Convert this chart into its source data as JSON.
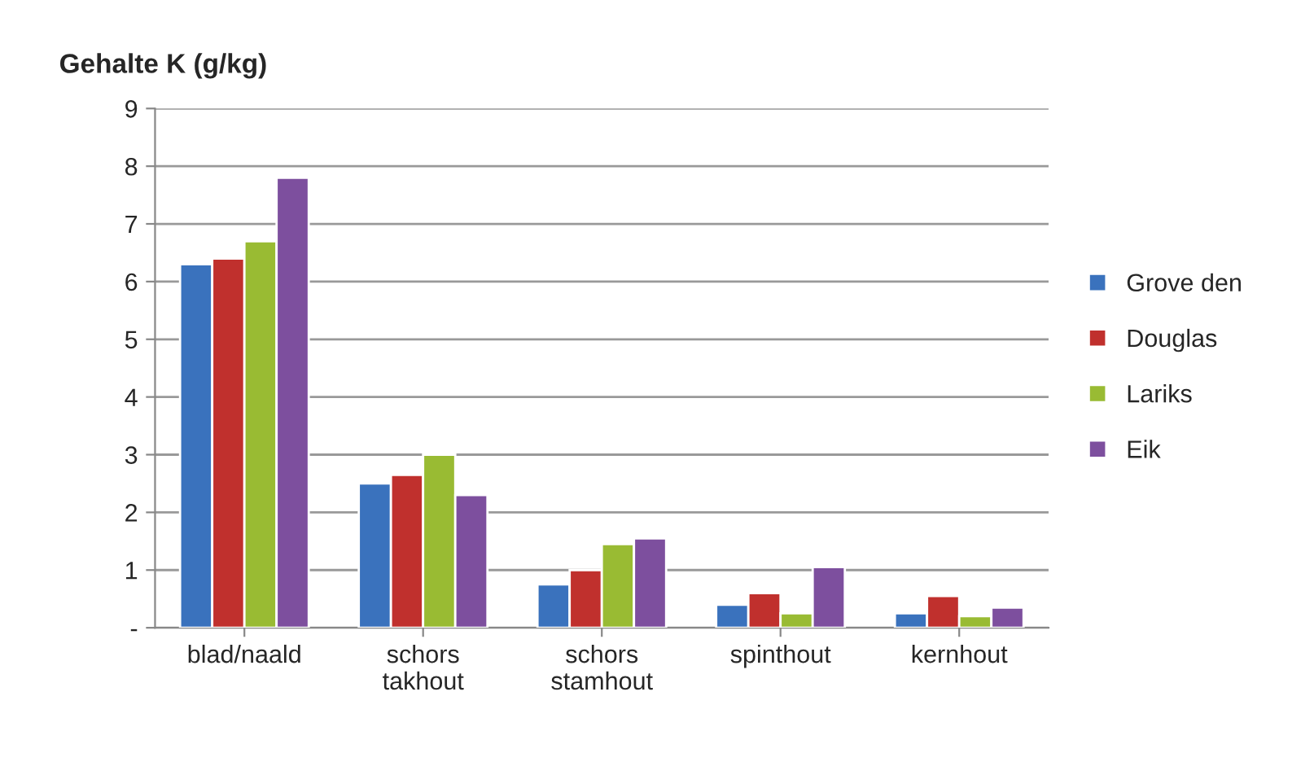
{
  "chart_data": {
    "type": "bar",
    "ylabel": "Gehalte K (g/kg)",
    "categories": [
      "blad/naald",
      "schors\ntakhout",
      "schors\nstamhout",
      "spinthout",
      "kernhout"
    ],
    "series": [
      {
        "name": "Grove den",
        "color": "#3a72bd",
        "values": [
          6.3,
          2.5,
          0.75,
          0.4,
          0.25
        ]
      },
      {
        "name": "Douglas",
        "color": "#c0302d",
        "values": [
          6.4,
          2.65,
          1.0,
          0.6,
          0.55
        ]
      },
      {
        "name": "Lariks",
        "color": "#99bb33",
        "values": [
          6.7,
          3.0,
          1.45,
          0.25,
          0.2
        ]
      },
      {
        "name": "Eik",
        "color": "#7d4f9e",
        "values": [
          7.8,
          2.3,
          1.55,
          1.05,
          0.35
        ]
      }
    ],
    "ylim": [
      0,
      9
    ],
    "yticks": [
      {
        "value": 0,
        "label": "-"
      },
      1,
      2,
      3,
      4,
      5,
      6,
      7,
      8,
      9
    ],
    "grid": "y",
    "legend": "right"
  }
}
